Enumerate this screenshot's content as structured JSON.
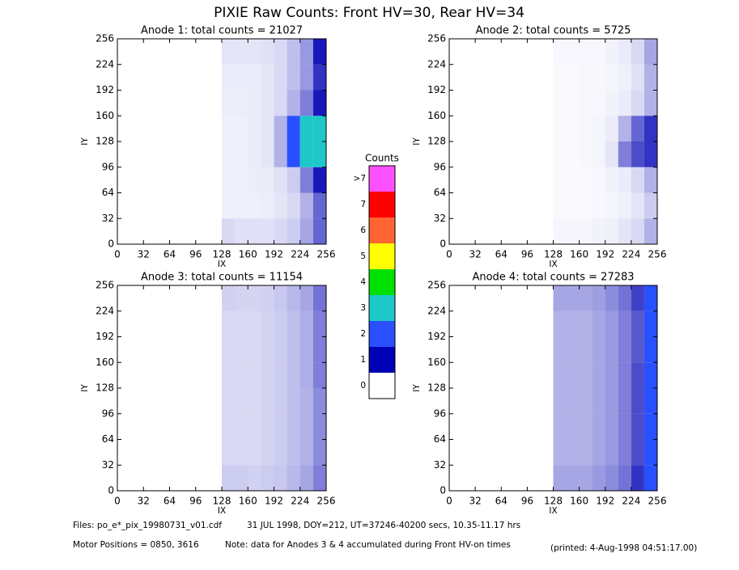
{
  "title": "PIXIE Raw Counts:  Front HV=30, Rear HV=34",
  "chart_data": [
    {
      "type": "heatmap",
      "title": "Anode 1: total counts = 21027",
      "xlabel": "IX",
      "ylabel": "IY",
      "xlim": [
        0,
        256
      ],
      "ylim": [
        0,
        256
      ],
      "xticks": [
        0,
        32,
        64,
        96,
        128,
        160,
        192,
        224,
        256
      ],
      "yticks": [
        0,
        32,
        64,
        96,
        128,
        160,
        192,
        224,
        256
      ],
      "x_bins": [
        0,
        128,
        144,
        160,
        176,
        192,
        208,
        224,
        240,
        256
      ],
      "y_bins": [
        0,
        32,
        64,
        96,
        128,
        160,
        192,
        224,
        256
      ],
      "values": [
        [
          0,
          0.15,
          0.12,
          0.12,
          0.12,
          0.15,
          0.2,
          0.35,
          0.6
        ],
        [
          0,
          0.06,
          0.06,
          0.06,
          0.07,
          0.1,
          0.15,
          0.3,
          0.6
        ],
        [
          0,
          0.06,
          0.06,
          0.07,
          0.08,
          0.12,
          0.2,
          0.5,
          0.9
        ],
        [
          0,
          0.06,
          0.06,
          0.08,
          0.1,
          0.3,
          1.5,
          2.5,
          2.5
        ],
        [
          0,
          0.06,
          0.06,
          0.08,
          0.1,
          0.3,
          1.2,
          2.2,
          2.5
        ],
        [
          0,
          0.07,
          0.07,
          0.08,
          0.1,
          0.15,
          0.3,
          0.5,
          0.9
        ],
        [
          0,
          0.08,
          0.08,
          0.08,
          0.1,
          0.15,
          0.25,
          0.4,
          0.8
        ],
        [
          0,
          0.1,
          0.1,
          0.1,
          0.12,
          0.15,
          0.25,
          0.4,
          0.9
        ]
      ]
    },
    {
      "type": "heatmap",
      "title": "Anode 2: total counts = 5725",
      "xlabel": "IX",
      "ylabel": "IY",
      "xlim": [
        0,
        256
      ],
      "ylim": [
        0,
        256
      ],
      "xticks": [
        0,
        32,
        64,
        96,
        128,
        160,
        192,
        224,
        256
      ],
      "yticks": [
        0,
        32,
        64,
        96,
        128,
        160,
        192,
        224,
        256
      ],
      "x_bins": [
        0,
        128,
        144,
        160,
        176,
        192,
        208,
        224,
        240,
        256
      ],
      "y_bins": [
        0,
        32,
        64,
        96,
        128,
        160,
        192,
        224,
        256
      ],
      "values": [
        [
          0,
          0.04,
          0.04,
          0.04,
          0.05,
          0.06,
          0.1,
          0.15,
          0.3
        ],
        [
          0,
          0.02,
          0.02,
          0.02,
          0.03,
          0.04,
          0.06,
          0.1,
          0.2
        ],
        [
          0,
          0.02,
          0.02,
          0.02,
          0.03,
          0.05,
          0.08,
          0.15,
          0.3
        ],
        [
          0,
          0.02,
          0.02,
          0.03,
          0.04,
          0.1,
          0.5,
          0.7,
          0.8
        ],
        [
          0,
          0.02,
          0.02,
          0.03,
          0.04,
          0.08,
          0.3,
          0.6,
          0.8
        ],
        [
          0,
          0.02,
          0.02,
          0.03,
          0.03,
          0.05,
          0.08,
          0.15,
          0.3
        ],
        [
          0,
          0.02,
          0.02,
          0.03,
          0.03,
          0.04,
          0.06,
          0.12,
          0.3
        ],
        [
          0,
          0.03,
          0.03,
          0.03,
          0.03,
          0.05,
          0.08,
          0.15,
          0.35
        ]
      ]
    },
    {
      "type": "heatmap",
      "title": "Anode 3: total counts = 11154",
      "xlabel": "IX",
      "ylabel": "IY",
      "xlim": [
        0,
        256
      ],
      "ylim": [
        0,
        256
      ],
      "xticks": [
        0,
        32,
        64,
        96,
        128,
        160,
        192,
        224,
        256
      ],
      "yticks": [
        0,
        32,
        64,
        96,
        128,
        160,
        192,
        224,
        256
      ],
      "x_bins": [
        0,
        128,
        144,
        160,
        176,
        192,
        208,
        224,
        240,
        256
      ],
      "y_bins": [
        0,
        32,
        64,
        96,
        128,
        160,
        192,
        224,
        256
      ],
      "values": [
        [
          0,
          0.2,
          0.2,
          0.18,
          0.2,
          0.22,
          0.28,
          0.35,
          0.5
        ],
        [
          0,
          0.15,
          0.15,
          0.15,
          0.17,
          0.2,
          0.25,
          0.3,
          0.45
        ],
        [
          0,
          0.15,
          0.15,
          0.15,
          0.17,
          0.2,
          0.25,
          0.3,
          0.45
        ],
        [
          0,
          0.15,
          0.15,
          0.15,
          0.17,
          0.2,
          0.25,
          0.3,
          0.45
        ],
        [
          0,
          0.15,
          0.15,
          0.15,
          0.17,
          0.2,
          0.25,
          0.32,
          0.5
        ],
        [
          0,
          0.15,
          0.15,
          0.15,
          0.17,
          0.2,
          0.25,
          0.32,
          0.5
        ],
        [
          0,
          0.15,
          0.15,
          0.15,
          0.17,
          0.2,
          0.25,
          0.32,
          0.5
        ],
        [
          0,
          0.18,
          0.17,
          0.17,
          0.18,
          0.22,
          0.28,
          0.35,
          0.55
        ]
      ]
    },
    {
      "type": "heatmap",
      "title": "Anode 4: total counts = 27283",
      "xlabel": "IX",
      "ylabel": "IY",
      "xlim": [
        0,
        256
      ],
      "ylim": [
        0,
        256
      ],
      "xticks": [
        0,
        32,
        64,
        96,
        128,
        160,
        192,
        224,
        256
      ],
      "yticks": [
        0,
        32,
        64,
        96,
        128,
        160,
        192,
        224,
        256
      ],
      "x_bins": [
        0,
        128,
        144,
        160,
        176,
        192,
        208,
        224,
        240,
        256
      ],
      "y_bins": [
        0,
        32,
        64,
        96,
        128,
        160,
        192,
        224,
        256
      ],
      "values": [
        [
          0,
          0.35,
          0.35,
          0.35,
          0.4,
          0.45,
          0.55,
          0.8,
          1.8
        ],
        [
          0,
          0.3,
          0.3,
          0.3,
          0.35,
          0.4,
          0.5,
          0.7,
          1.6
        ],
        [
          0,
          0.3,
          0.3,
          0.3,
          0.35,
          0.4,
          0.5,
          0.7,
          1.6
        ],
        [
          0,
          0.3,
          0.3,
          0.3,
          0.35,
          0.4,
          0.5,
          0.7,
          1.5
        ],
        [
          0,
          0.3,
          0.3,
          0.3,
          0.35,
          0.4,
          0.5,
          0.7,
          1.5
        ],
        [
          0,
          0.3,
          0.3,
          0.3,
          0.35,
          0.4,
          0.5,
          0.65,
          1.5
        ],
        [
          0,
          0.3,
          0.3,
          0.3,
          0.35,
          0.4,
          0.5,
          0.65,
          1.5
        ],
        [
          0,
          0.35,
          0.35,
          0.35,
          0.38,
          0.45,
          0.55,
          0.75,
          1.7
        ]
      ]
    }
  ],
  "colorbar": {
    "title": "Counts",
    "labels": [
      "0",
      "1",
      "2",
      "3",
      "4",
      "5",
      "6",
      "7",
      ">7"
    ],
    "colors": [
      "#ffffff",
      "#0000b4",
      "#2850ff",
      "#1ec8c8",
      "#00e000",
      "#ffff00",
      "#ff6432",
      "#ff0000",
      "#ff50ff"
    ]
  },
  "footer": {
    "files": "Files: po_e*_pix_19980731_v01.cdf",
    "date": "31 JUL 1998, DOY=212, UT=37246-40200 secs, 10.35-11.17 hrs",
    "motor": "Motor Positions = 0850, 3616",
    "note": "Note: data for Anodes 3 & 4 accumulated during Front HV-on times",
    "printed": "(printed:  4-Aug-1998 04:51:17.00)"
  }
}
